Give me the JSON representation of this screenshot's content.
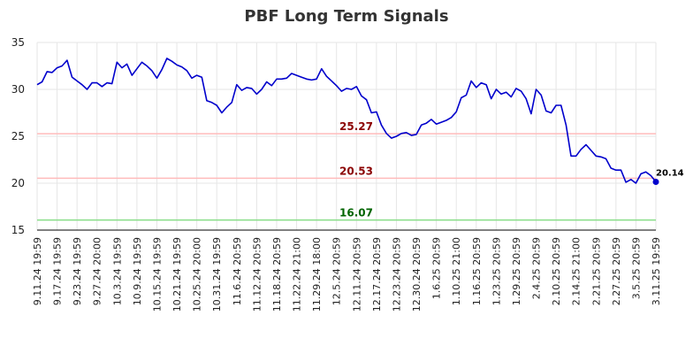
{
  "chart_data": {
    "type": "line",
    "title": "PBF Long Term Signals",
    "xlabel": "",
    "ylabel": "",
    "ylim": [
      15,
      35
    ],
    "yticks": [
      15,
      20,
      25,
      30,
      35
    ],
    "grid": true,
    "x_tick_labels": [
      "9.11.24 19:59",
      "9.17.24 19:59",
      "9.23.24 19:59",
      "9.27.24 20:00",
      "10.3.24 19:59",
      "10.9.24 19:59",
      "10.15.24 19:59",
      "10.21.24 19:59",
      "10.25.24 20:00",
      "10.31.24 19:59",
      "11.6.24 20:59",
      "11.12.24 20:59",
      "11.18.24 20:59",
      "11.22.24 21:00",
      "11.29.24 18:00",
      "12.5.24 20:59",
      "12.11.24 20:59",
      "12.17.24 20:59",
      "12.23.24 20:59",
      "12.30.24 20:59",
      "1.6.25 20:59",
      "1.10.25 21:00",
      "1.16.25 20:59",
      "1.23.25 20:59",
      "1.29.25 20:59",
      "2.4.25 20:59",
      "2.10.25 20:59",
      "2.14.25 21:00",
      "2.21.25 20:59",
      "2.27.25 20:59",
      "3.5.25 20:59",
      "3.11.25 19:59"
    ],
    "series": [
      {
        "color": "#0000cc",
        "values": [
          30.5,
          30.8,
          31.9,
          31.8,
          32.3,
          32.5,
          33.1,
          31.3,
          30.9,
          30.5,
          30.0,
          30.7,
          30.7,
          30.3,
          30.7,
          30.6,
          32.9,
          32.3,
          32.7,
          31.5,
          32.2,
          32.9,
          32.5,
          32.0,
          31.2,
          32.1,
          33.3,
          33.0,
          32.6,
          32.4,
          32.0,
          31.2,
          31.5,
          31.3,
          28.8,
          28.6,
          28.3,
          27.5,
          28.1,
          28.6,
          30.5,
          29.9,
          30.2,
          30.1,
          29.5,
          30.0,
          30.8,
          30.4,
          31.1,
          31.1,
          31.2,
          31.7,
          31.5,
          31.3,
          31.1,
          31.0,
          31.1,
          32.2,
          31.4,
          30.9,
          30.4,
          29.8,
          30.1,
          30.0,
          30.3,
          29.3,
          28.9,
          27.5,
          27.6,
          26.2,
          25.3,
          24.8,
          25.0,
          25.3,
          25.4,
          25.1,
          25.2,
          26.2,
          26.4,
          26.8,
          26.3,
          26.5,
          26.7,
          27.0,
          27.6,
          29.1,
          29.4,
          30.9,
          30.2,
          30.7,
          30.5,
          29.0,
          30.0,
          29.5,
          29.7,
          29.2,
          30.1,
          29.8,
          29.0,
          27.4,
          30.0,
          29.4,
          27.7,
          27.5,
          28.3,
          28.3,
          26.2,
          22.9,
          22.9,
          23.6,
          24.1,
          23.5,
          22.9,
          22.8,
          22.6,
          21.6,
          21.4,
          21.4,
          20.1,
          20.4,
          20.0,
          21.0,
          21.2,
          20.8,
          20.14
        ]
      }
    ],
    "reference_lines": [
      {
        "value": 25.27,
        "label": "25.27",
        "line_color": "#ffbbbb",
        "label_color": "#8b0000"
      },
      {
        "value": 20.53,
        "label": "20.53",
        "line_color": "#ffbbbb",
        "label_color": "#8b0000"
      },
      {
        "value": 16.07,
        "label": "16.07",
        "line_color": "#88dd88",
        "label_color": "#006400"
      }
    ],
    "last_value_label": "20.14"
  }
}
